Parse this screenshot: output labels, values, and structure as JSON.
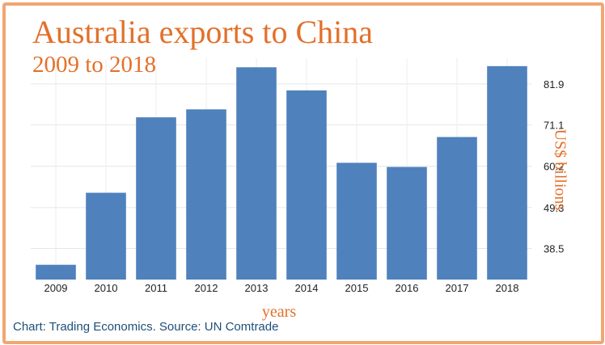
{
  "chart_data": {
    "type": "bar",
    "title": "Australia exports to China",
    "subtitle": "2009 to 2018",
    "xlabel": "years",
    "ylabel": "US$ billions",
    "categories": [
      "2009",
      "2010",
      "2011",
      "2012",
      "2013",
      "2014",
      "2015",
      "2016",
      "2017",
      "2018"
    ],
    "values": [
      34.2,
      53.2,
      73.1,
      75.2,
      86.3,
      80.2,
      61.1,
      60.0,
      67.9,
      86.6
    ],
    "yticks": [
      38.5,
      49.3,
      60.2,
      71.1,
      81.9
    ],
    "ytick_labels": [
      "38.5",
      "49.3",
      "60.2",
      "71.1",
      "81.9"
    ],
    "ylim": [
      30.3,
      88.7
    ],
    "grid": true,
    "y_axis_side": "right",
    "bar_color": "#4f81bd",
    "accent_color": "#e3702a"
  },
  "source": "Chart: Trading Economics. Source: UN Comtrade",
  "frame_color": "#f0a772",
  "source_color": "#1f4e79"
}
